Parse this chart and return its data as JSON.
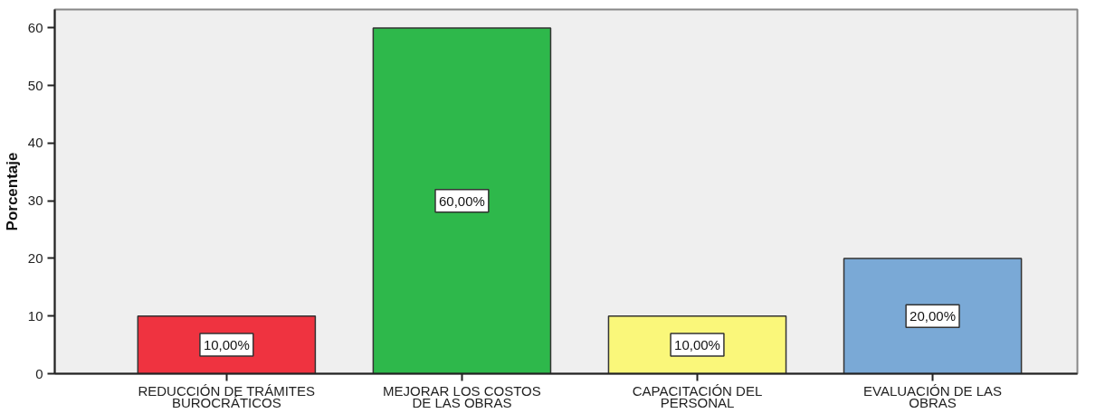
{
  "chart_data": {
    "type": "bar",
    "ylabel": "Porcentaje",
    "categories": [
      "REDUCCIÓN DE TRÁMITES\nBUROCRÁTICOS",
      "MEJORAR LOS COSTOS\nDE LAS OBRAS",
      "CAPACITACIÓN DEL\nPERSONAL",
      "EVALUACIÓN DE LAS\nOBRAS"
    ],
    "values": [
      10,
      60,
      10,
      20
    ],
    "colors": [
      "#ef3340",
      "#2eb84b",
      "#faf77a",
      "#7aa9d6"
    ],
    "value_labels": [
      "10,00%",
      "60,00%",
      "10,00%",
      "20,00%"
    ],
    "ylim": [
      0,
      63.2
    ],
    "yticks": [
      0,
      10,
      20,
      30,
      40,
      50,
      60
    ],
    "grid": false
  }
}
